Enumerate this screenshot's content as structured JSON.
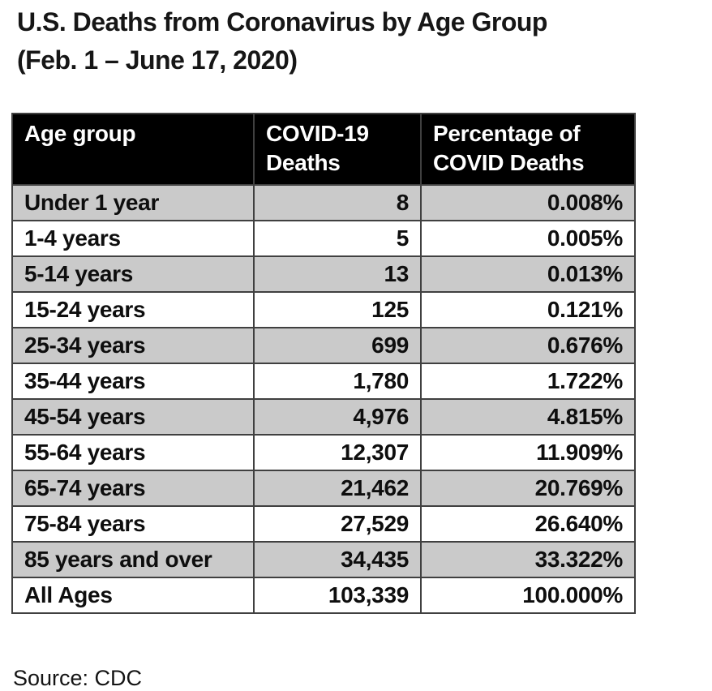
{
  "title": {
    "line1": "U.S. Deaths from Coronavirus by Age Group",
    "line2": "(Feb. 1 – June 17, 2020)"
  },
  "table": {
    "headers": {
      "age": "Age group",
      "deaths": "COVID-19\nDeaths",
      "pct": "Percentage of\nCOVID Deaths"
    },
    "rows": [
      {
        "age": "Under 1 year",
        "deaths": "8",
        "pct": "0.008%"
      },
      {
        "age": "1-4 years",
        "deaths": "5",
        "pct": "0.005%"
      },
      {
        "age": "5-14 years",
        "deaths": "13",
        "pct": "0.013%"
      },
      {
        "age": "15-24 years",
        "deaths": "125",
        "pct": "0.121%"
      },
      {
        "age": "25-34 years",
        "deaths": "699",
        "pct": "0.676%"
      },
      {
        "age": "35-44 years",
        "deaths": "1,780",
        "pct": "1.722%"
      },
      {
        "age": "45-54 years",
        "deaths": "4,976",
        "pct": "4.815%"
      },
      {
        "age": "55-64 years",
        "deaths": "12,307",
        "pct": "11.909%"
      },
      {
        "age": "65-74 years",
        "deaths": "21,462",
        "pct": "20.769%"
      },
      {
        "age": "75-84 years",
        "deaths": "27,529",
        "pct": "26.640%"
      },
      {
        "age": "85 years and over",
        "deaths": "34,435",
        "pct": "33.322%"
      },
      {
        "age": "All Ages",
        "deaths": "103,339",
        "pct": "100.000%"
      }
    ]
  },
  "source": "Source: CDC",
  "colors": {
    "header_bg": "#000000",
    "header_text": "#ffffff",
    "alt_row_bg": "#cacaca",
    "row_bg": "#ffffff",
    "border": "#404040",
    "text": "#0e0e0e"
  },
  "chart_data": {
    "type": "table",
    "title": "U.S. Deaths from Coronavirus by Age Group (Feb. 1 – June 17, 2020)",
    "columns": [
      "Age group",
      "COVID-19 Deaths",
      "Percentage of COVID Deaths"
    ],
    "categories": [
      "Under 1 year",
      "1-4 years",
      "5-14 years",
      "15-24 years",
      "25-34 years",
      "35-44 years",
      "45-54 years",
      "55-64 years",
      "65-74 years",
      "75-84 years",
      "85 years and over",
      "All Ages"
    ],
    "series": [
      {
        "name": "COVID-19 Deaths",
        "values": [
          8,
          5,
          13,
          125,
          699,
          1780,
          4976,
          12307,
          21462,
          27529,
          34435,
          103339
        ]
      },
      {
        "name": "Percentage of COVID Deaths",
        "values": [
          0.008,
          0.005,
          0.013,
          0.121,
          0.676,
          1.722,
          4.815,
          11.909,
          20.769,
          26.64,
          33.322,
          100.0
        ]
      }
    ],
    "source": "CDC",
    "legend_position": "none",
    "grid": false
  }
}
